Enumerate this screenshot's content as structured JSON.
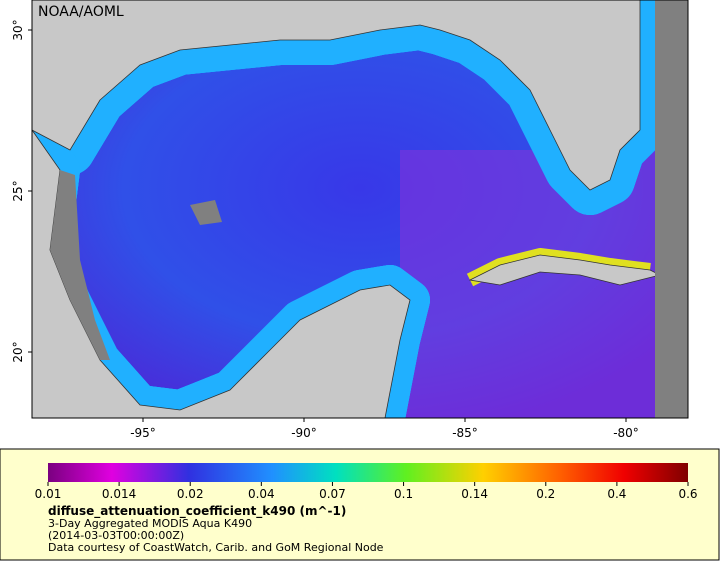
{
  "map": {
    "credit": "NOAA/AOML",
    "lat_ticks": [
      "30°",
      "25°",
      "20°"
    ],
    "lon_ticks": [
      "-95°",
      "-90°",
      "-85°",
      "-80°"
    ],
    "colorbar": {
      "ticks": [
        "0.01",
        "0.014",
        "0.02",
        "0.04",
        "0.07",
        "0.1",
        "0.14",
        "0.2",
        "0.4",
        "0.6"
      ]
    },
    "legend": {
      "variable": "diffuse_attenuation_coefficient_k490 (m^-1)",
      "product": "3-Day Aggregated MODIS Aqua K490",
      "time": "(2014-03-03T00:00:00Z)",
      "source": "Data courtesy of CoastWatch, Carib. and GoM Regional Node"
    }
  }
}
